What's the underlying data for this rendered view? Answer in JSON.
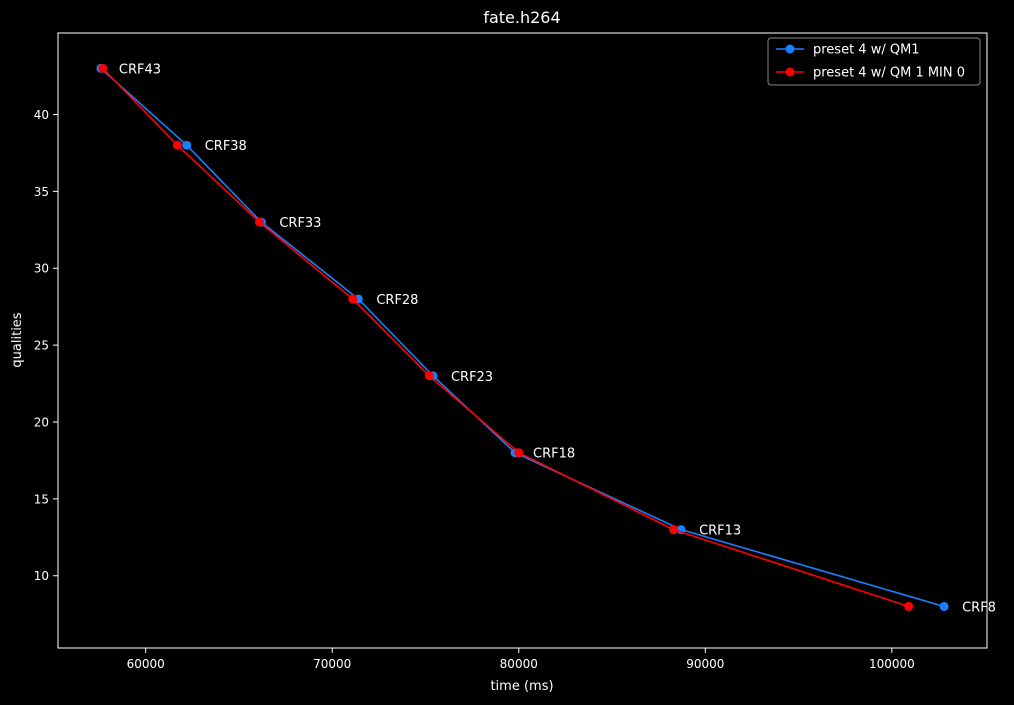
{
  "chart_data": {
    "type": "line",
    "title": "fate.h264",
    "xlabel": "time (ms)",
    "ylabel": "qualities",
    "xlim": [
      55300,
      105100
    ],
    "ylim": [
      5.3,
      45.3
    ],
    "xticks": [
      60000,
      70000,
      80000,
      90000,
      100000
    ],
    "yticks": [
      10,
      15,
      20,
      25,
      30,
      35,
      40
    ],
    "grid": false,
    "legend_position": "upper-right",
    "series": [
      {
        "name": "preset 4 w/ QM1",
        "color": "#1a80ff",
        "x": [
          57600,
          62200,
          66200,
          71400,
          75400,
          79800,
          88700,
          102800
        ],
        "y": [
          43,
          38,
          33,
          28,
          23,
          18,
          13,
          8
        ]
      },
      {
        "name": "preset 4 w/ QM 1 MIN 0",
        "color": "#ff0000",
        "x": [
          57700,
          61700,
          66100,
          71100,
          75200,
          80000,
          88300,
          100900
        ],
        "y": [
          43,
          38,
          33,
          28,
          23,
          18,
          13,
          8
        ]
      }
    ],
    "annotations": [
      {
        "text": "CRF43",
        "x": 57600,
        "y": 43
      },
      {
        "text": "CRF38",
        "x": 62200,
        "y": 38
      },
      {
        "text": "CRF33",
        "x": 66200,
        "y": 33
      },
      {
        "text": "CRF28",
        "x": 71400,
        "y": 28
      },
      {
        "text": "CRF23",
        "x": 75400,
        "y": 23
      },
      {
        "text": "CRF18",
        "x": 79800,
        "y": 18
      },
      {
        "text": "CRF13",
        "x": 88700,
        "y": 13
      },
      {
        "text": "CRF8",
        "x": 102800,
        "y": 8
      }
    ]
  }
}
